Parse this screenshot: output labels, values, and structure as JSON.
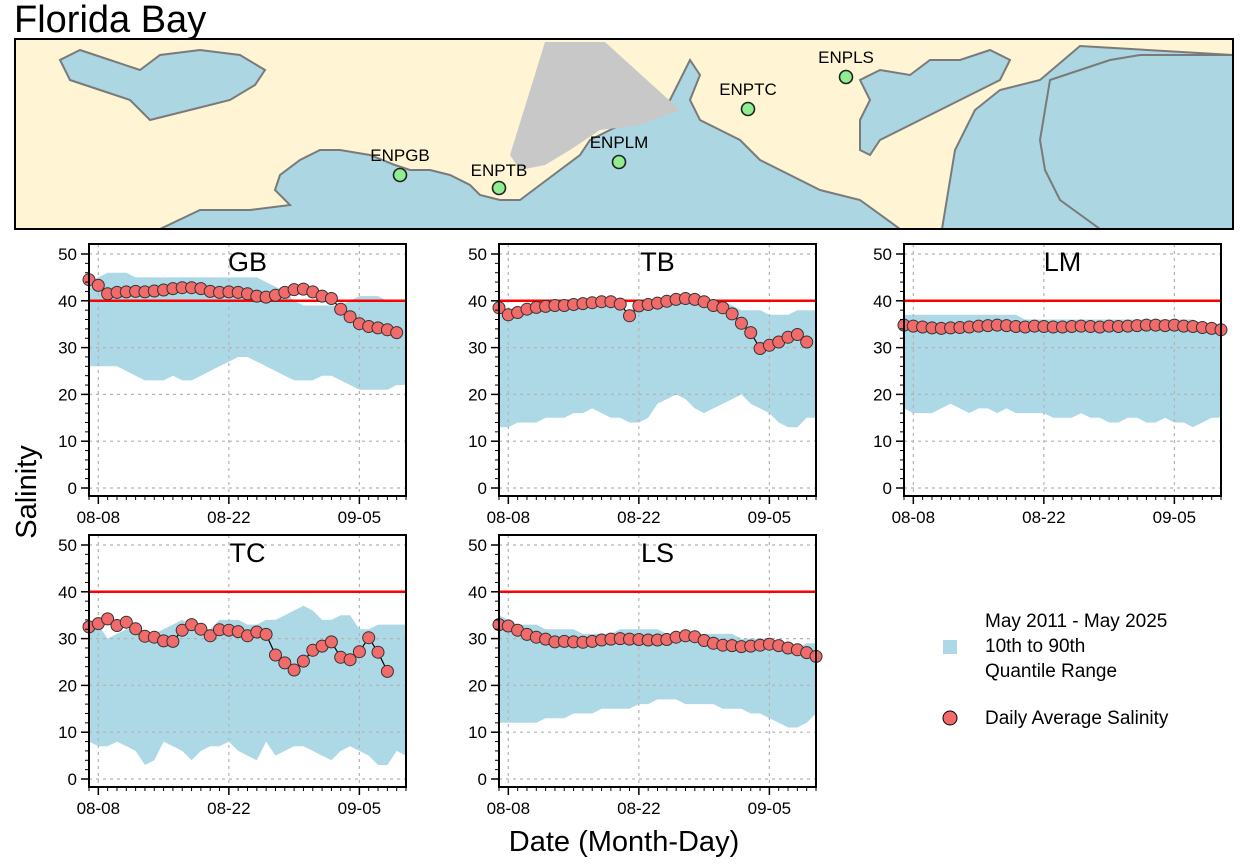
{
  "title": "Florida Bay",
  "map": {
    "stations": [
      {
        "id": "ENPGB",
        "label": "ENPGB"
      },
      {
        "id": "ENPTB",
        "label": "ENPTB"
      },
      {
        "id": "ENPLM",
        "label": "ENPLM"
      },
      {
        "id": "ENPTC",
        "label": "ENPTC"
      },
      {
        "id": "ENPLS",
        "label": "ENPLS"
      }
    ],
    "colors": {
      "water": "#abd6e2",
      "land": "#fff5d4",
      "gray": "#c8c8c8",
      "station": "#90ee90",
      "outline": "#7a7a7a"
    }
  },
  "legend": {
    "quantile_lines": [
      "May 2011 - May 2025",
      "10th to 90th",
      "Quantile Range"
    ],
    "daily_label": "Daily Average Salinity"
  },
  "axis": {
    "ylabel": "Salinity",
    "xlabel": "Date (Month-Day)"
  },
  "colors": {
    "band": "#add8e6",
    "point": "#f26b6b",
    "threshold": "#ff0000",
    "grid": "#b4b4b4"
  },
  "chart_data": [
    {
      "type": "line",
      "title": "GB",
      "x_start": "08-07",
      "x_ticks": [
        "08-08",
        "08-22",
        "09-05"
      ],
      "xlim_days": [
        0,
        34
      ],
      "ylim": [
        0,
        50
      ],
      "yticks": [
        0,
        10,
        20,
        30,
        40,
        50
      ],
      "grid": true,
      "threshold": 40,
      "band_lower": [
        26,
        26,
        26,
        26,
        25,
        24,
        23,
        23,
        23,
        24,
        23,
        23,
        24,
        25,
        26,
        27,
        28,
        28,
        27,
        26,
        25,
        24,
        23,
        23,
        23,
        24,
        24,
        23,
        22,
        21,
        21,
        21,
        21,
        22,
        22
      ],
      "band_upper": [
        44,
        45,
        46,
        46,
        46,
        45,
        45,
        45,
        45,
        45,
        45,
        45,
        45,
        45,
        45,
        45,
        45,
        45,
        45,
        44,
        43,
        42,
        40,
        39,
        39,
        39,
        39,
        39,
        40,
        41,
        41,
        41,
        40,
        40,
        40
      ],
      "values": [
        44.5,
        43.3,
        41.5,
        41.8,
        41.9,
        42.0,
        41.9,
        42.1,
        42.3,
        42.6,
        42.8,
        42.8,
        42.6,
        42.0,
        41.8,
        41.9,
        41.8,
        41.5,
        41.0,
        40.8,
        41.2,
        41.8,
        42.4,
        42.5,
        41.9,
        41.0,
        40.5,
        38.2,
        36.6,
        35.1,
        34.5,
        34.2,
        33.8,
        33.2
      ]
    },
    {
      "type": "line",
      "title": "TB",
      "x_start": "08-07",
      "x_ticks": [
        "08-08",
        "08-22",
        "09-05"
      ],
      "xlim_days": [
        0,
        34
      ],
      "ylim": [
        0,
        50
      ],
      "yticks": [
        0,
        10,
        20,
        30,
        40,
        50
      ],
      "grid": true,
      "threshold": 40,
      "band_lower": [
        13,
        13,
        14,
        14,
        14,
        15,
        15,
        15,
        16,
        16,
        17,
        16,
        15,
        15,
        14,
        14,
        15,
        18,
        19,
        20,
        19,
        17,
        16,
        17,
        18,
        19,
        20,
        18,
        17,
        16,
        14,
        13,
        13,
        15,
        15
      ],
      "band_upper": [
        39,
        38,
        38,
        38,
        38,
        38,
        38,
        38,
        38,
        39,
        39,
        39,
        39,
        38,
        38,
        39,
        39,
        40,
        40,
        41,
        41,
        41,
        40,
        40,
        40,
        39,
        38,
        38,
        38,
        37,
        37,
        37,
        38,
        38,
        38
      ],
      "values": [
        38.5,
        37.0,
        37.5,
        38.2,
        38.6,
        38.8,
        39.0,
        39.0,
        39.2,
        39.4,
        39.6,
        39.8,
        39.8,
        39.3,
        36.8,
        38.9,
        39.2,
        39.5,
        39.9,
        40.3,
        40.5,
        40.3,
        39.8,
        39.0,
        38.5,
        37.2,
        35.2,
        33.2,
        29.8,
        30.5,
        31.2,
        32.2,
        32.8,
        31.2
      ]
    },
    {
      "type": "line",
      "title": "LM",
      "x_start": "08-07",
      "x_ticks": [
        "08-08",
        "08-22",
        "09-05"
      ],
      "xlim_days": [
        0,
        34
      ],
      "ylim": [
        0,
        50
      ],
      "yticks": [
        0,
        10,
        20,
        30,
        40,
        50
      ],
      "grid": true,
      "threshold": 40,
      "band_lower": [
        17,
        16,
        16,
        16,
        17,
        18,
        17,
        16,
        17,
        17,
        16,
        17,
        16,
        16,
        16,
        16,
        15,
        15,
        15,
        16,
        15,
        15,
        14,
        14,
        15,
        15,
        14,
        14,
        15,
        14,
        14,
        13,
        14,
        15,
        15
      ],
      "band_upper": [
        37,
        37,
        37,
        37,
        37,
        37,
        37,
        37,
        37,
        37,
        37,
        37,
        37,
        36,
        36,
        36,
        36,
        36,
        36,
        36,
        36,
        36,
        36,
        36,
        36,
        36,
        36,
        36,
        36,
        36,
        36,
        36,
        35,
        34,
        33
      ],
      "values": [
        34.8,
        34.6,
        34.4,
        34.2,
        34.1,
        34.2,
        34.3,
        34.4,
        34.6,
        34.7,
        34.8,
        34.7,
        34.5,
        34.4,
        34.6,
        34.5,
        34.4,
        34.4,
        34.5,
        34.6,
        34.5,
        34.4,
        34.6,
        34.5,
        34.6,
        34.7,
        34.8,
        34.8,
        34.7,
        34.8,
        34.6,
        34.5,
        34.3,
        34.1,
        33.8
      ]
    },
    {
      "type": "line",
      "title": "TC",
      "x_start": "08-07",
      "x_ticks": [
        "08-08",
        "08-22",
        "09-05"
      ],
      "xlim_days": [
        0,
        34
      ],
      "ylim": [
        0,
        50
      ],
      "yticks": [
        0,
        10,
        20,
        30,
        40,
        50
      ],
      "grid": true,
      "threshold": 40,
      "band_lower": [
        8,
        7,
        7,
        8,
        7,
        6,
        3,
        4,
        8,
        7,
        6,
        4,
        6,
        7,
        7,
        8,
        6,
        5,
        4,
        8,
        5,
        6,
        7,
        7,
        6,
        5,
        4,
        6,
        7,
        6,
        5,
        3,
        3,
        6,
        5
      ],
      "band_upper": [
        34,
        33,
        30,
        31,
        32,
        32,
        31,
        31,
        32,
        33,
        34,
        33,
        32,
        32,
        34,
        34,
        34,
        33,
        33,
        34,
        34,
        35,
        36,
        37,
        36,
        34,
        34,
        35,
        35,
        32,
        32,
        33,
        33,
        33,
        33
      ],
      "values": [
        32.5,
        33.2,
        34.2,
        32.8,
        33.5,
        32.1,
        30.5,
        30.3,
        29.5,
        29.4,
        31.8,
        33.0,
        32.0,
        30.6,
        31.9,
        31.8,
        31.5,
        30.6,
        31.4,
        30.9,
        26.5,
        24.8,
        23.3,
        25.2,
        27.5,
        28.4,
        29.3,
        26.0,
        25.5,
        27.2,
        30.2,
        27.1,
        23.0
      ]
    },
    {
      "type": "line",
      "title": "LS",
      "x_start": "08-07",
      "x_ticks": [
        "08-08",
        "08-22",
        "09-05"
      ],
      "xlim_days": [
        0,
        34
      ],
      "ylim": [
        0,
        50
      ],
      "yticks": [
        0,
        10,
        20,
        30,
        40,
        50
      ],
      "grid": true,
      "threshold": 40,
      "band_lower": [
        12,
        12,
        12,
        12,
        12,
        13,
        13,
        13,
        14,
        14,
        14,
        15,
        15,
        15,
        15,
        16,
        16,
        17,
        17,
        17,
        16,
        16,
        16,
        16,
        15,
        15,
        15,
        14,
        14,
        13,
        12,
        11,
        11,
        12,
        14
      ],
      "band_upper": [
        35,
        34,
        33,
        33,
        33,
        32,
        32,
        32,
        32,
        31,
        31,
        31,
        31,
        32,
        32,
        32,
        32,
        32,
        31,
        31,
        31,
        31,
        31,
        31,
        31,
        31,
        30,
        30,
        30,
        30,
        29,
        29,
        28,
        29,
        29
      ],
      "values": [
        33.0,
        32.7,
        31.8,
        30.9,
        30.3,
        29.9,
        29.3,
        29.4,
        29.3,
        29.2,
        29.4,
        29.7,
        29.9,
        30.0,
        29.9,
        29.8,
        29.7,
        29.7,
        29.8,
        30.3,
        30.6,
        30.4,
        29.6,
        29.0,
        28.6,
        28.5,
        28.3,
        28.4,
        28.6,
        28.8,
        28.5,
        28.0,
        27.6,
        27.0,
        26.2
      ]
    }
  ]
}
